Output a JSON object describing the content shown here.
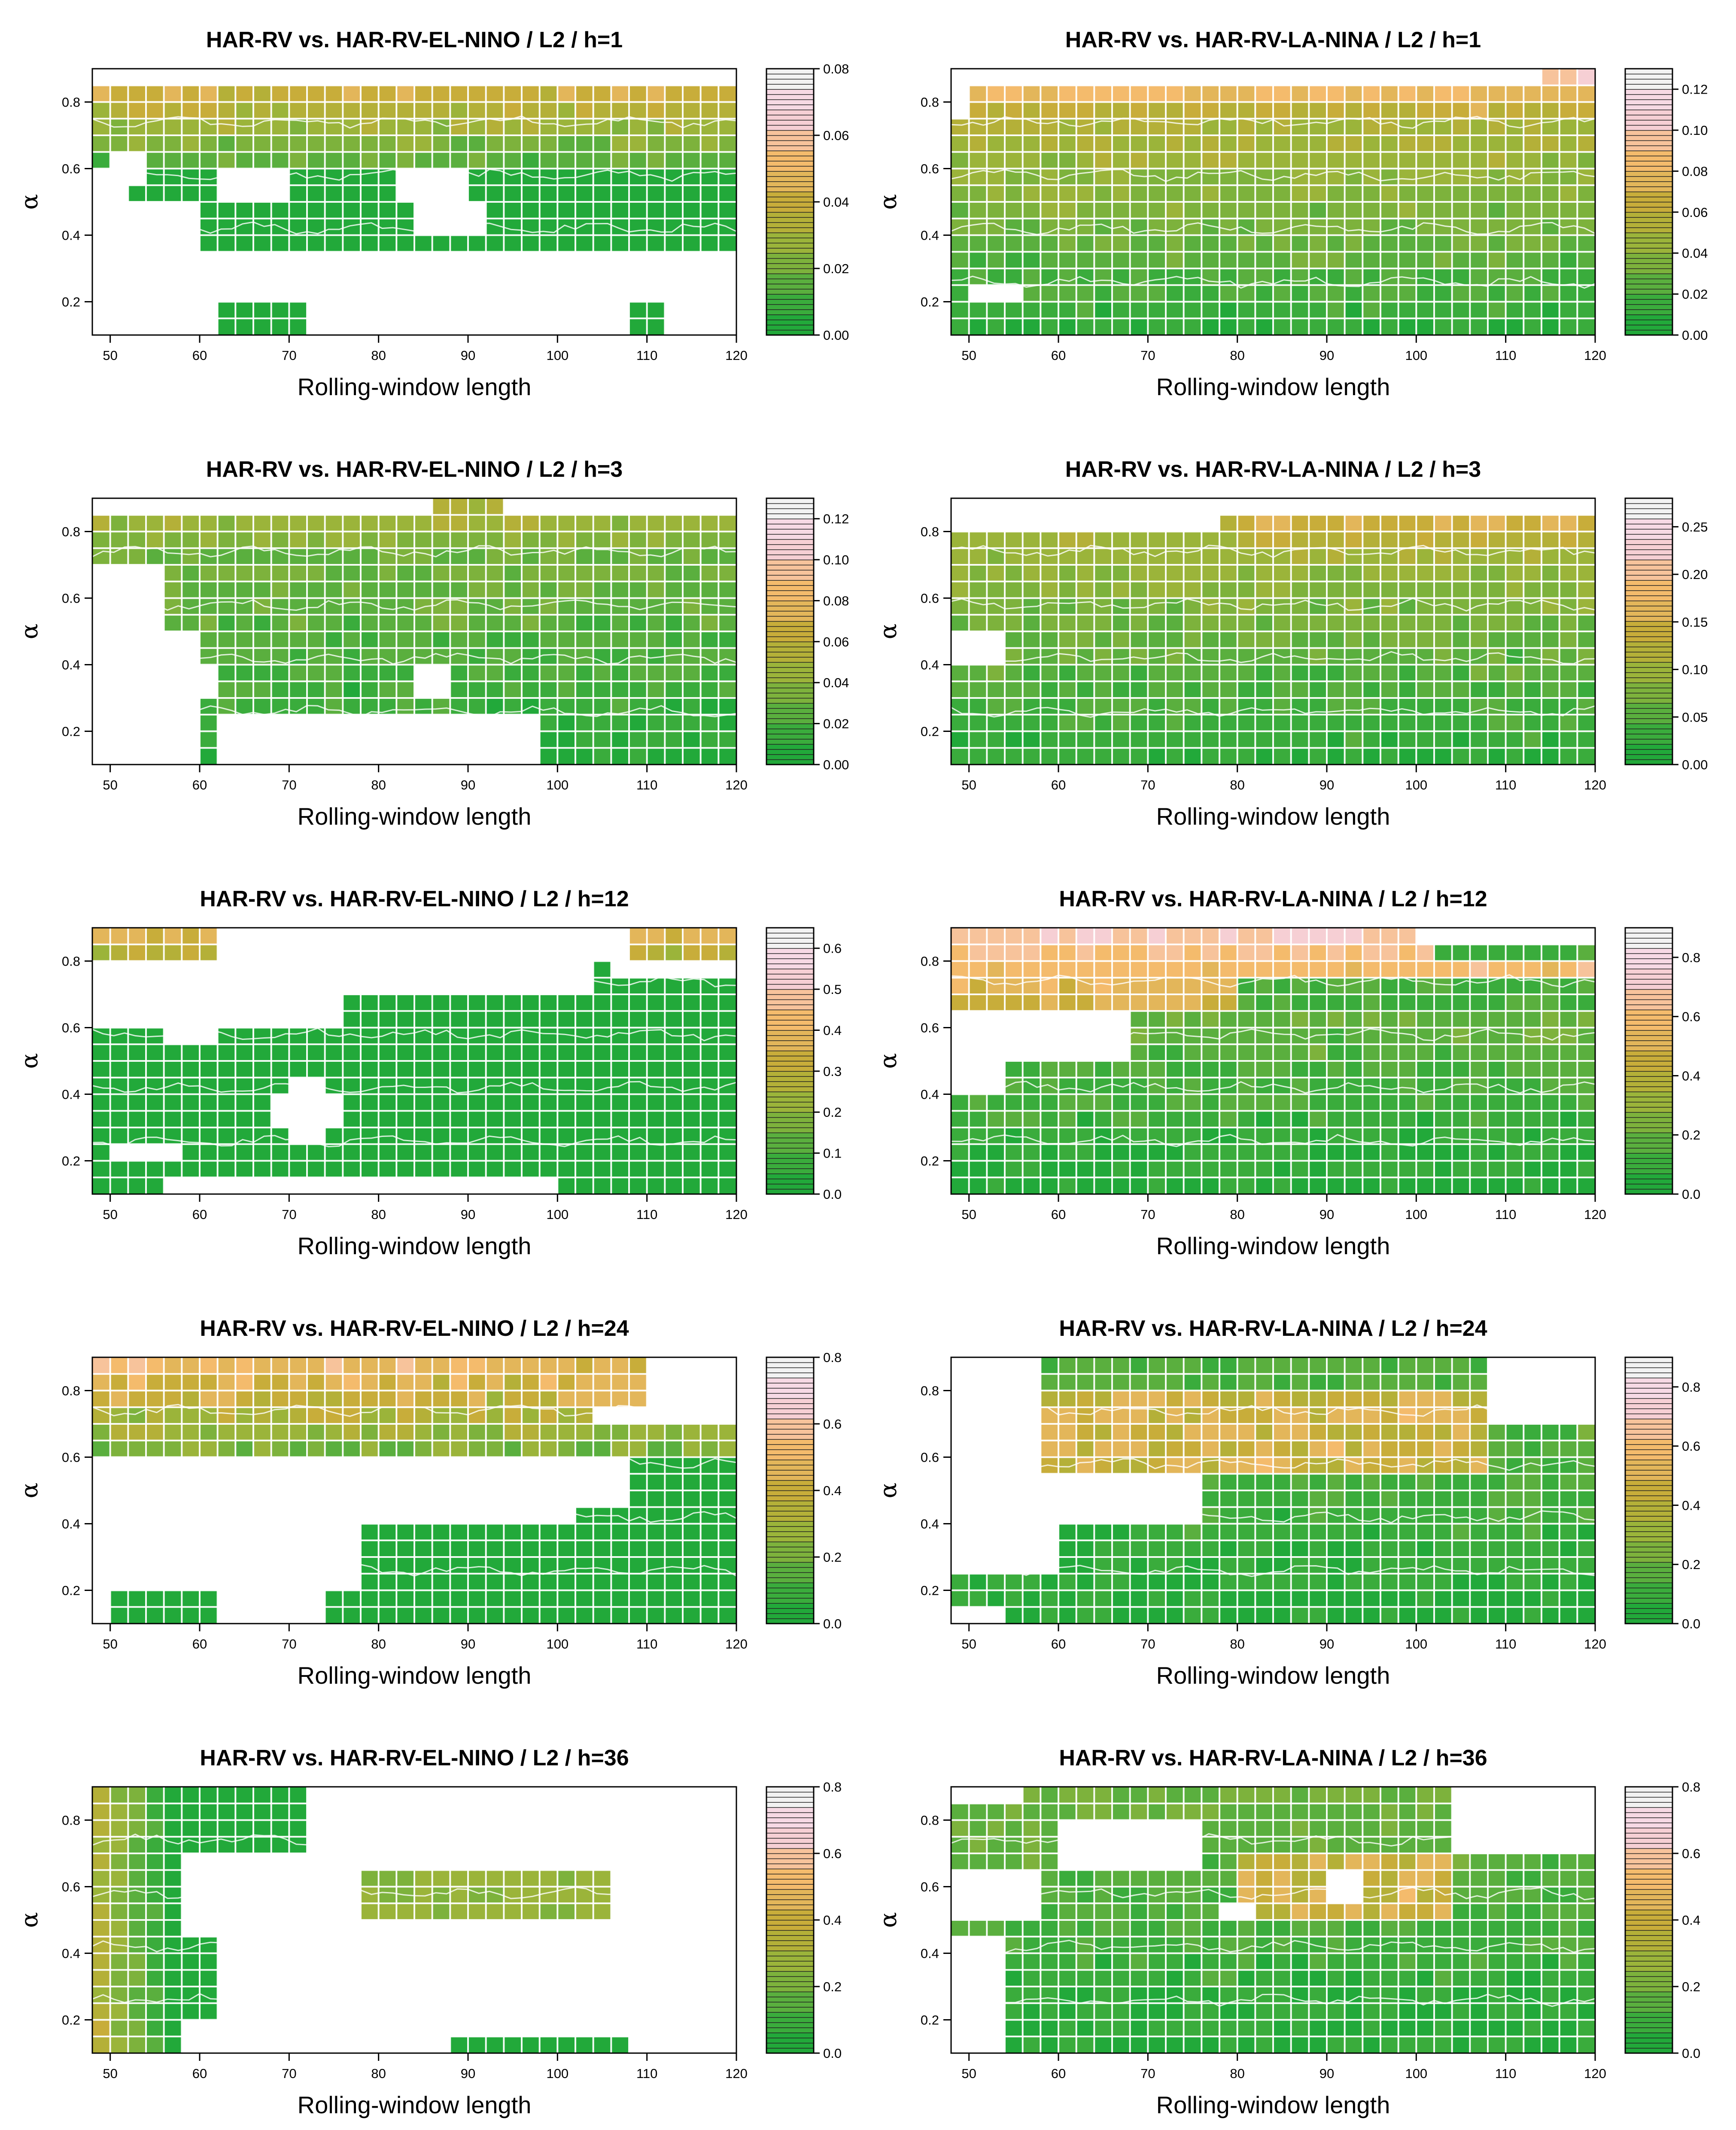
{
  "figure": {
    "xlabel": "Rolling-window length",
    "ylabel": "α",
    "x_ticks": [
      50,
      60,
      70,
      80,
      90,
      100,
      110,
      120
    ],
    "y_ticks": [
      0.2,
      0.4,
      0.6,
      0.8
    ],
    "xlim": [
      48,
      120
    ],
    "ylim": [
      0.1,
      0.9
    ],
    "palette": [
      "#22a93a",
      "#3aac3c",
      "#5aaf3e",
      "#7db23c",
      "#9bb43a",
      "#b4b038",
      "#c8ad3a",
      "#e3b65a",
      "#f4bb6c",
      "#f7c39b",
      "#f6cfd4",
      "#f6d9e4",
      "#f2f2f2"
    ]
  },
  "chart_data": [
    {
      "type": "heatmap",
      "title": "HAR-RV vs. HAR-RV-EL-NINO / L2 / h=1",
      "xlabel": "Rolling-window length",
      "ylabel": "α",
      "colorbar": {
        "range": [
          0,
          0.08
        ],
        "ticks": [
          "0.00",
          "0.02",
          "0.04",
          "0.06",
          "0.08"
        ]
      },
      "pattern": "el1"
    },
    {
      "type": "heatmap",
      "title": "HAR-RV vs. HAR-RV-LA-NINA / L2 / h=1",
      "xlabel": "Rolling-window length",
      "ylabel": "α",
      "colorbar": {
        "range": [
          0,
          0.13
        ],
        "ticks": [
          "0.00",
          "0.02",
          "0.04",
          "0.06",
          "0.08",
          "0.10",
          "0.12"
        ]
      },
      "pattern": "la1"
    },
    {
      "type": "heatmap",
      "title": "HAR-RV vs. HAR-RV-EL-NINO / L2 / h=3",
      "xlabel": "Rolling-window length",
      "ylabel": "α",
      "colorbar": {
        "range": [
          0,
          0.13
        ],
        "ticks": [
          "0.00",
          "0.02",
          "0.04",
          "0.06",
          "0.08",
          "0.10",
          "0.12"
        ]
      },
      "pattern": "el3"
    },
    {
      "type": "heatmap",
      "title": "HAR-RV vs. HAR-RV-LA-NINA / L2 / h=3",
      "xlabel": "Rolling-window length",
      "ylabel": "α",
      "colorbar": {
        "range": [
          0,
          0.28
        ],
        "ticks": [
          "0.00",
          "0.05",
          "0.10",
          "0.15",
          "0.20",
          "0.25"
        ]
      },
      "pattern": "la3"
    },
    {
      "type": "heatmap",
      "title": "HAR-RV vs. HAR-RV-EL-NINO / L2 / h=12",
      "xlabel": "Rolling-window length",
      "ylabel": "α",
      "colorbar": {
        "range": [
          0,
          0.65
        ],
        "ticks": [
          "0.0",
          "0.1",
          "0.2",
          "0.3",
          "0.4",
          "0.5",
          "0.6"
        ]
      },
      "pattern": "el12"
    },
    {
      "type": "heatmap",
      "title": "HAR-RV vs. HAR-RV-LA-NINA / L2 / h=12",
      "xlabel": "Rolling-window length",
      "ylabel": "α",
      "colorbar": {
        "range": [
          0,
          0.9
        ],
        "ticks": [
          "0.0",
          "0.2",
          "0.4",
          "0.6",
          "0.8"
        ]
      },
      "pattern": "la12"
    },
    {
      "type": "heatmap",
      "title": "HAR-RV vs. HAR-RV-EL-NINO / L2 / h=24",
      "xlabel": "Rolling-window length",
      "ylabel": "α",
      "colorbar": {
        "range": [
          0,
          0.8
        ],
        "ticks": [
          "0.0",
          "0.2",
          "0.4",
          "0.6",
          "0.8"
        ]
      },
      "pattern": "el24"
    },
    {
      "type": "heatmap",
      "title": "HAR-RV vs. HAR-RV-LA-NINA / L2 / h=24",
      "xlabel": "Rolling-window length",
      "ylabel": "α",
      "colorbar": {
        "range": [
          0,
          0.9
        ],
        "ticks": [
          "0.0",
          "0.2",
          "0.4",
          "0.6",
          "0.8"
        ]
      },
      "pattern": "la24"
    },
    {
      "type": "heatmap",
      "title": "HAR-RV vs. HAR-RV-EL-NINO / L2 / h=36",
      "xlabel": "Rolling-window length",
      "ylabel": "α",
      "colorbar": {
        "range": [
          0,
          0.8
        ],
        "ticks": [
          "0.0",
          "0.2",
          "0.4",
          "0.6",
          "0.8"
        ]
      },
      "pattern": "el36"
    },
    {
      "type": "heatmap",
      "title": "HAR-RV vs. HAR-RV-LA-NINA / L2 / h=36",
      "xlabel": "Rolling-window length",
      "ylabel": "α",
      "colorbar": {
        "range": [
          0,
          0.8
        ],
        "ticks": [
          "0.0",
          "0.2",
          "0.4",
          "0.6",
          "0.8"
        ]
      },
      "pattern": "la36"
    }
  ]
}
